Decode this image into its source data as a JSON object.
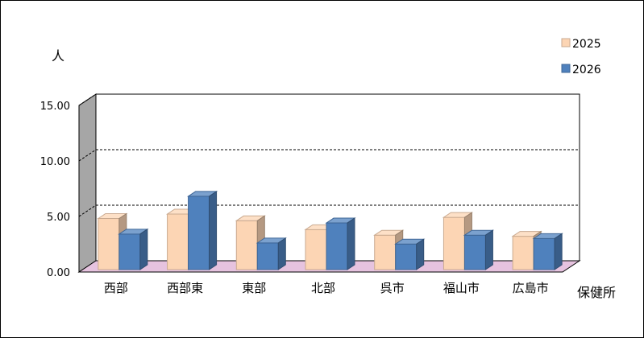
{
  "chart_data": {
    "type": "bar",
    "ylabel": "人",
    "xlabel": "保健所",
    "categories": [
      "西部",
      "西部東",
      "東部",
      "北部",
      "呉市",
      "福山市",
      "広島市"
    ],
    "series": [
      {
        "name": "2025",
        "color": "#FCD5B4",
        "values": [
          4.6,
          5.0,
          4.4,
          3.6,
          3.1,
          4.7,
          3.0
        ]
      },
      {
        "name": "2026",
        "color": "#4F81BD",
        "values": [
          3.2,
          6.6,
          2.4,
          4.2,
          2.3,
          3.1,
          2.8
        ]
      }
    ],
    "ylim": [
      0,
      15
    ],
    "yticks": [
      "0.00",
      "5.00",
      "10.00",
      "15.00"
    ],
    "grid": true,
    "legend": "top-right",
    "floor_color": "#E6C3DF",
    "wall_color": "#A6A6A6"
  }
}
